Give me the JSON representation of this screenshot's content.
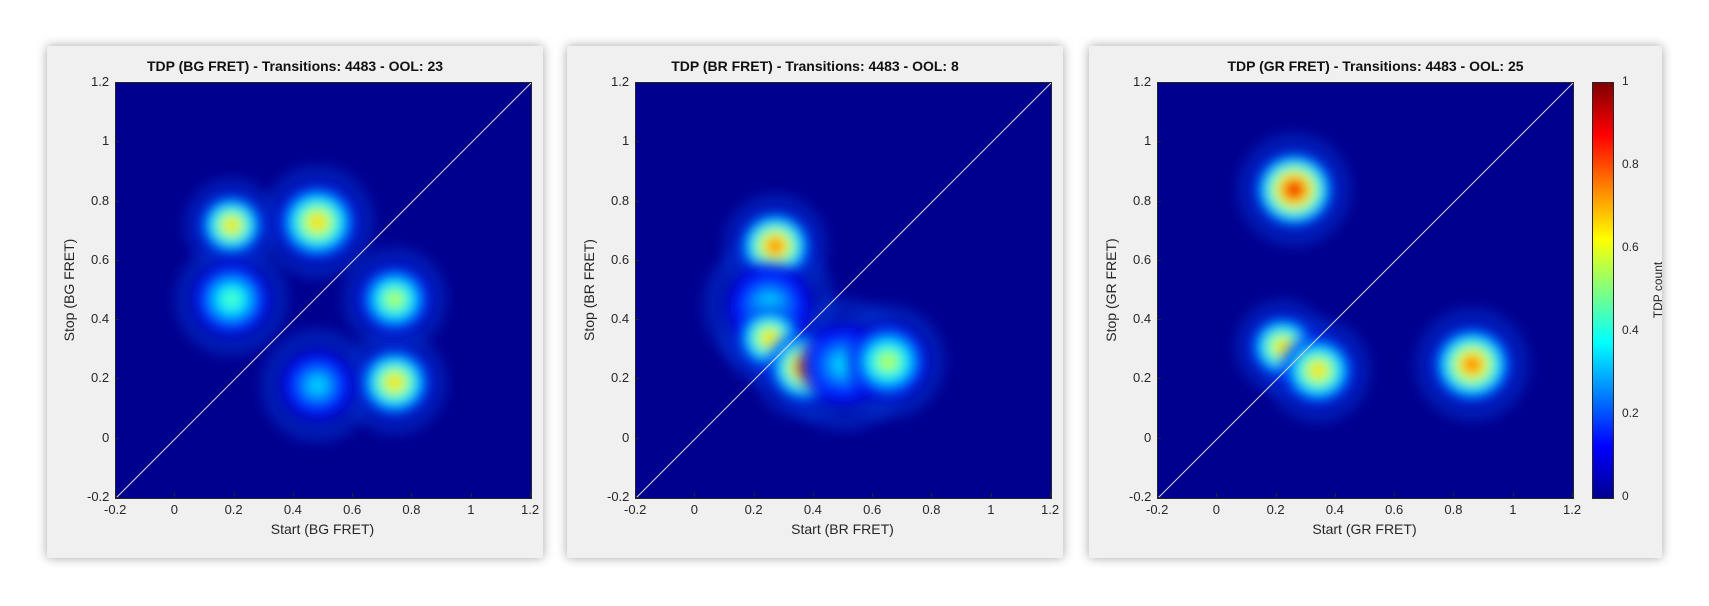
{
  "chart_data": [
    {
      "type": "heatmap",
      "title": "TDP (BG FRET) - Transitions: 4483 - OOL: 23",
      "xlabel": "Start (BG FRET)",
      "ylabel": "Stop (BG FRET)",
      "xlim": [
        -0.2,
        1.2
      ],
      "ylim": [
        -0.2,
        1.2
      ],
      "xticks": [
        "-0.2",
        "0",
        "0.2",
        "0.4",
        "0.6",
        "0.8",
        "1",
        "1.2"
      ],
      "yticks": [
        "-0.2",
        "0",
        "0.2",
        "0.4",
        "0.6",
        "0.8",
        "1",
        "1.2"
      ],
      "diagonal": true,
      "peaks": [
        {
          "x": 0.19,
          "y": 0.72,
          "intensity": 0.85,
          "spread": 0.05
        },
        {
          "x": 0.48,
          "y": 0.73,
          "intensity": 0.92,
          "spread": 0.06
        },
        {
          "x": 0.19,
          "y": 0.47,
          "intensity": 0.6,
          "spread": 0.06
        },
        {
          "x": 0.74,
          "y": 0.47,
          "intensity": 0.8,
          "spread": 0.055
        },
        {
          "x": 0.48,
          "y": 0.18,
          "intensity": 0.55,
          "spread": 0.06
        },
        {
          "x": 0.74,
          "y": 0.19,
          "intensity": 0.9,
          "spread": 0.055
        }
      ]
    },
    {
      "type": "heatmap",
      "title": "TDP (BR FRET) - Transitions: 4483 - OOL: 8",
      "xlabel": "Start (BR FRET)",
      "ylabel": "Stop (BR FRET)",
      "xlim": [
        -0.2,
        1.2
      ],
      "ylim": [
        -0.2,
        1.2
      ],
      "xticks": [
        "-0.2",
        "0",
        "0.2",
        "0.4",
        "0.6",
        "0.8",
        "1",
        "1.2"
      ],
      "yticks": [
        "-0.2",
        "0",
        "0.2",
        "0.4",
        "0.6",
        "0.8",
        "1",
        "1.2"
      ],
      "diagonal": true,
      "peaks": [
        {
          "x": 0.27,
          "y": 0.65,
          "intensity": 0.95,
          "spread": 0.055
        },
        {
          "x": 0.25,
          "y": 0.45,
          "intensity": 0.45,
          "spread": 0.07
        },
        {
          "x": 0.25,
          "y": 0.34,
          "intensity": 0.9,
          "spread": 0.05
        },
        {
          "x": 0.37,
          "y": 0.24,
          "intensity": 0.95,
          "spread": 0.055
        },
        {
          "x": 0.5,
          "y": 0.25,
          "intensity": 0.45,
          "spread": 0.07
        },
        {
          "x": 0.65,
          "y": 0.26,
          "intensity": 0.75,
          "spread": 0.06
        }
      ]
    },
    {
      "type": "heatmap",
      "title": "TDP (GR FRET) - Transitions: 4483 - OOL: 25",
      "xlabel": "Start (GR FRET)",
      "ylabel": "Stop (GR FRET)",
      "xlim": [
        -0.2,
        1.2
      ],
      "ylim": [
        -0.2,
        1.2
      ],
      "xticks": [
        "-0.2",
        "0",
        "0.2",
        "0.4",
        "0.6",
        "0.8",
        "1",
        "1.2"
      ],
      "yticks": [
        "-0.2",
        "0",
        "0.2",
        "0.4",
        "0.6",
        "0.8",
        "1",
        "1.2"
      ],
      "diagonal": true,
      "peaks": [
        {
          "x": 0.26,
          "y": 0.84,
          "intensity": 1.0,
          "spread": 0.06
        },
        {
          "x": 0.22,
          "y": 0.31,
          "intensity": 0.9,
          "spread": 0.05
        },
        {
          "x": 0.34,
          "y": 0.23,
          "intensity": 0.92,
          "spread": 0.055
        },
        {
          "x": 0.86,
          "y": 0.25,
          "intensity": 0.95,
          "spread": 0.06
        }
      ],
      "colorbar": {
        "label": "TDP count",
        "ticks": [
          "0",
          "0.2",
          "0.4",
          "0.6",
          "0.8",
          "1"
        ],
        "range": [
          0,
          1
        ]
      }
    }
  ]
}
